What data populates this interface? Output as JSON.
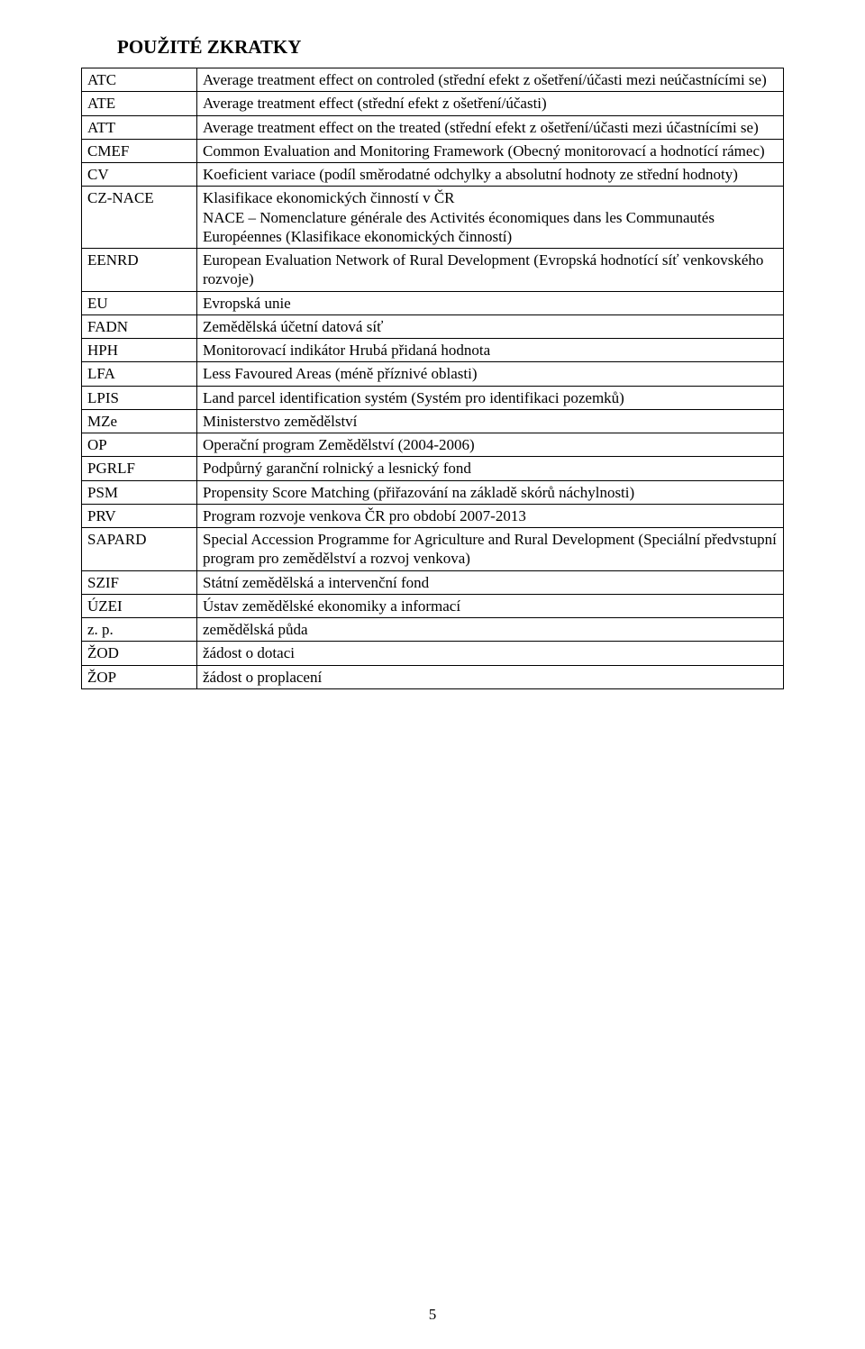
{
  "heading": "POUŽITÉ ZKRATKY",
  "pageNumber": "5",
  "rows": [
    {
      "abbr": "ATC",
      "def": "Average treatment effect on controled (střední efekt z ošetření/účasti mezi neúčastnícími se)"
    },
    {
      "abbr": "ATE",
      "def": "Average treatment effect (střední efekt z ošetření/účasti)"
    },
    {
      "abbr": "ATT",
      "def": "Average treatment effect on the treated (střední efekt z ošetření/účasti mezi účastnícími se)"
    },
    {
      "abbr": "CMEF",
      "def": "Common Evaluation and Monitoring Framework (Obecný monitorovací a hodnotící rámec)"
    },
    {
      "abbr": "CV",
      "def": "Koeficient variace (podíl směrodatné odchylky a absolutní hodnoty ze střední hodnoty)"
    },
    {
      "abbr": "CZ-NACE",
      "def": "Klasifikace ekonomických činností v ČR\nNACE – Nomenclature générale des Activités économiques dans les Communautés Européennes (Klasifikace ekonomických činností)"
    },
    {
      "abbr": "EENRD",
      "def": "European Evaluation Network of Rural Development (Evropská hodnotící síť venkovského rozvoje)"
    },
    {
      "abbr": "EU",
      "def": "Evropská unie"
    },
    {
      "abbr": "FADN",
      "def": "Zemědělská účetní datová síť"
    },
    {
      "abbr": "HPH",
      "def": "Monitorovací indikátor Hrubá přidaná hodnota"
    },
    {
      "abbr": "LFA",
      "def": "Less Favoured Areas (méně příznivé oblasti)"
    },
    {
      "abbr": "LPIS",
      "def": "Land parcel identification systém (Systém pro identifikaci pozemků)"
    },
    {
      "abbr": "MZe",
      "def": "Ministerstvo zemědělství"
    },
    {
      "abbr": "OP",
      "def": "Operační program Zemědělství (2004-2006)"
    },
    {
      "abbr": "PGRLF",
      "def": "Podpůrný garanční rolnický a lesnický fond"
    },
    {
      "abbr": "PSM",
      "def": "Propensity Score Matching (přiřazování na základě skórů náchylnosti)"
    },
    {
      "abbr": "PRV",
      "def": "Program rozvoje venkova ČR pro období 2007-2013"
    },
    {
      "abbr": "SAPARD",
      "def": "Special Accession Programme for Agriculture and Rural Development (Speciální předvstupní program pro zemědělství a rozvoj venkova)"
    },
    {
      "abbr": "SZIF",
      "def": "Státní zemědělská a intervenční fond"
    },
    {
      "abbr": "ÚZEI",
      "def": "Ústav zemědělské ekonomiky a informací"
    },
    {
      "abbr": "z. p.",
      "def": "zemědělská půda"
    },
    {
      "abbr": "ŽOD",
      "def": "žádost o dotaci"
    },
    {
      "abbr": "ŽOP",
      "def": "žádost o proplacení"
    }
  ]
}
